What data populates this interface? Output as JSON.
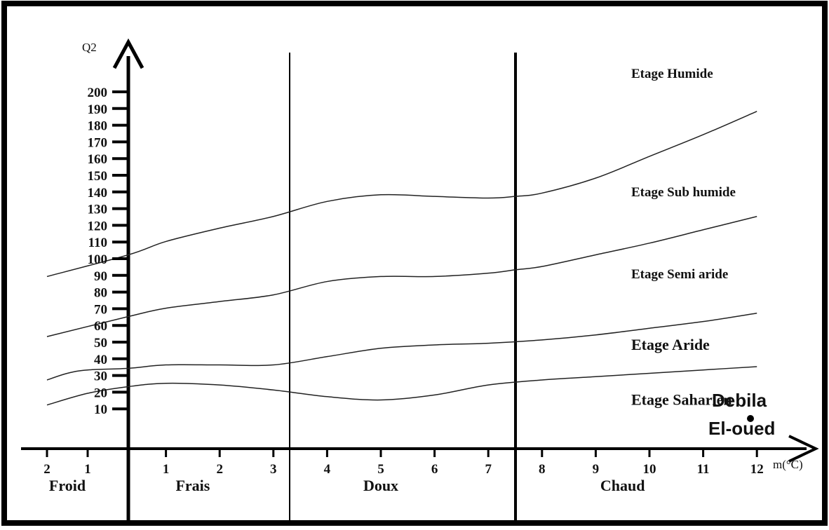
{
  "chart_data": {
    "type": "line",
    "title": "",
    "ylabel": "Q2",
    "xlabel": "m(°C)",
    "ylim": [
      0,
      200
    ],
    "xlim": [
      -2,
      12
    ],
    "grid": false,
    "y_ticks": [
      10,
      20,
      30,
      40,
      50,
      60,
      70,
      80,
      90,
      100,
      110,
      120,
      130,
      140,
      150,
      160,
      170,
      180,
      190,
      200
    ],
    "x_ticks": [
      {
        "value": -2,
        "label": "2"
      },
      {
        "value": -1,
        "label": "1"
      },
      {
        "value": 1,
        "label": "1"
      },
      {
        "value": 2,
        "label": "2"
      },
      {
        "value": 3,
        "label": "3"
      },
      {
        "value": 4,
        "label": "4"
      },
      {
        "value": 5,
        "label": "5"
      },
      {
        "value": 6,
        "label": "6"
      },
      {
        "value": 7,
        "label": "7"
      },
      {
        "value": 8,
        "label": "8"
      },
      {
        "value": 9,
        "label": "9"
      },
      {
        "value": 10,
        "label": "10"
      },
      {
        "value": 11,
        "label": "11"
      },
      {
        "value": 12,
        "label": "12"
      }
    ],
    "zone_dividers": [
      3,
      7.5
    ],
    "zones": [
      {
        "label": "Froid",
        "x": -1.5
      },
      {
        "label": "Frais",
        "x": 1.5
      },
      {
        "label": "Doux",
        "x": 5
      },
      {
        "label": "Chaud",
        "x": 9.5
      }
    ],
    "series": [
      {
        "x": [
          -2,
          0,
          1,
          2,
          3,
          4,
          5,
          6,
          7,
          7.5,
          8,
          9,
          10,
          11,
          12
        ],
        "values": [
          91,
          104,
          112,
          120,
          127,
          136,
          140,
          139,
          138,
          139,
          141,
          150,
          163,
          176,
          190
        ]
      },
      {
        "x": [
          -2,
          0,
          1,
          2,
          3,
          4,
          5,
          6,
          7,
          7.5,
          8,
          9,
          10,
          11,
          12
        ],
        "values": [
          55,
          67,
          72,
          76,
          80,
          88,
          91,
          91,
          93,
          95,
          97,
          104,
          111,
          119,
          127
        ]
      },
      {
        "x": [
          -2,
          -1.5,
          -1,
          0,
          1,
          2,
          3,
          4,
          5,
          6,
          7,
          8,
          9,
          10,
          11,
          12
        ],
        "values": [
          29,
          33,
          35,
          36,
          38,
          38,
          38,
          43,
          48,
          50,
          51,
          53,
          56,
          60,
          64,
          69
        ]
      },
      {
        "x": [
          -2,
          -1,
          0,
          1,
          2,
          3,
          4,
          5,
          6,
          7,
          8,
          9,
          10,
          11,
          12
        ],
        "values": [
          14,
          21,
          25,
          27,
          26,
          23,
          19,
          17,
          20,
          26,
          29,
          31,
          33,
          35,
          37
        ]
      }
    ],
    "annotations": [
      {
        "label": "Etage Humide",
        "x": 10.5,
        "y": 210
      },
      {
        "label": "Etage Sub humide",
        "x": 10.5,
        "y": 139
      },
      {
        "label": "Etage Semi aride",
        "x": 10.5,
        "y": 90
      },
      {
        "label": "Etage Aride",
        "x": 10.5,
        "y": 47
      },
      {
        "label": "Etage Saharien",
        "x": 10.5,
        "y": 14
      }
    ],
    "points": [
      {
        "label": "Debila",
        "x": 12.3,
        "y": 10
      },
      {
        "label": "El-oued",
        "x": 12.3,
        "y": 10
      }
    ]
  }
}
